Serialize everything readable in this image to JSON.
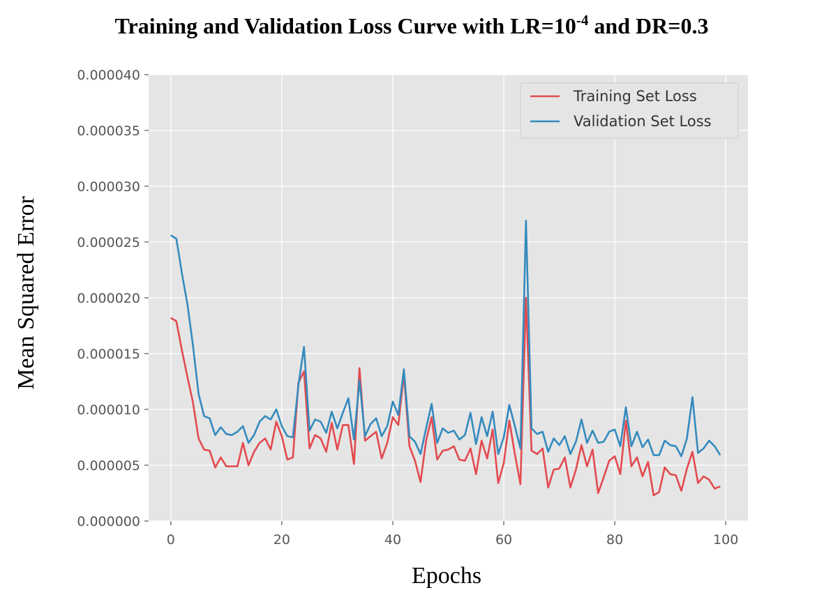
{
  "chart_data": {
    "type": "line",
    "title": {
      "prefix": "Training and Validation Loss Curve with LR=10",
      "superscript": "-4",
      "suffix": " and DR=0.3"
    },
    "xlabel": "Epochs",
    "ylabel": "Mean Squared Error",
    "xlim": [
      -4,
      104
    ],
    "ylim": [
      0,
      4e-05
    ],
    "xticks": [
      0,
      20,
      40,
      60,
      80,
      100
    ],
    "xtick_labels": [
      "0",
      "20",
      "40",
      "60",
      "80",
      "100"
    ],
    "yticks": [
      0,
      5e-06,
      1e-05,
      1.5e-05,
      2e-05,
      2.5e-05,
      3e-05,
      3.5e-05,
      4e-05
    ],
    "ytick_labels": [
      "0.000000",
      "0.000005",
      "0.000010",
      "0.000015",
      "0.000020",
      "0.000025",
      "0.000030",
      "0.000035",
      "0.000040"
    ],
    "grid": true,
    "legend_position": "top-right",
    "series": [
      {
        "name": "Training Set Loss",
        "color": "#e24a4f",
        "values": [
          18.2,
          17.9,
          15.3,
          12.9,
          10.6,
          7.4,
          6.4,
          6.3,
          4.8,
          5.7,
          4.9,
          4.9,
          4.9,
          7.0,
          5.0,
          6.2,
          7.0,
          7.4,
          6.4,
          8.9,
          7.6,
          5.5,
          5.7,
          12.4,
          13.4,
          6.5,
          7.7,
          7.4,
          6.2,
          8.8,
          6.4,
          8.6,
          8.6,
          5.1,
          13.7,
          7.2,
          7.6,
          8.0,
          5.6,
          7.0,
          9.3,
          8.6,
          13.2,
          6.7,
          5.4,
          3.5,
          7.2,
          9.3,
          5.5,
          6.3,
          6.4,
          6.7,
          5.5,
          5.4,
          6.5,
          4.2,
          7.2,
          5.6,
          8.2,
          3.4,
          5.2,
          9.0,
          6.0,
          3.3,
          20.0,
          6.3,
          6.0,
          6.5,
          3.0,
          4.6,
          4.7,
          5.7,
          3.0,
          4.6,
          6.8,
          4.9,
          6.4,
          2.5,
          3.9,
          5.4,
          5.8,
          4.2,
          9.0,
          4.9,
          5.7,
          4.0,
          5.3,
          2.3,
          2.6,
          4.8,
          4.2,
          4.1,
          2.7,
          4.7,
          6.2,
          3.4,
          4.0,
          3.7,
          2.9,
          3.1
        ]
      },
      {
        "name": "Validation Set Loss",
        "color": "#348abd",
        "values": [
          25.6,
          25.3,
          22.2,
          19.4,
          15.7,
          11.4,
          9.4,
          9.2,
          7.7,
          8.4,
          7.8,
          7.7,
          8.0,
          8.5,
          7.0,
          7.7,
          8.9,
          9.4,
          9.1,
          10.0,
          8.5,
          7.6,
          7.5,
          12.2,
          15.6,
          8.1,
          9.1,
          8.9,
          7.9,
          9.8,
          8.3,
          9.7,
          11.0,
          7.3,
          12.6,
          7.6,
          8.7,
          9.2,
          7.6,
          8.5,
          10.7,
          9.5,
          13.6,
          7.6,
          7.1,
          6.0,
          8.3,
          10.5,
          7.0,
          8.3,
          7.9,
          8.1,
          7.3,
          7.7,
          9.7,
          6.9,
          9.3,
          7.6,
          9.8,
          6.0,
          7.5,
          10.4,
          8.5,
          6.5,
          26.9,
          8.3,
          7.8,
          8.0,
          6.2,
          7.4,
          6.8,
          7.6,
          6.0,
          7.1,
          9.1,
          7.0,
          8.1,
          7.0,
          7.1,
          8.0,
          8.2,
          6.7,
          10.2,
          6.7,
          8.0,
          6.6,
          7.3,
          5.9,
          5.9,
          7.2,
          6.8,
          6.7,
          5.8,
          7.4,
          11.1,
          6.1,
          6.5,
          7.2,
          6.7,
          5.9
        ]
      }
    ],
    "value_scale": 1e-06
  }
}
